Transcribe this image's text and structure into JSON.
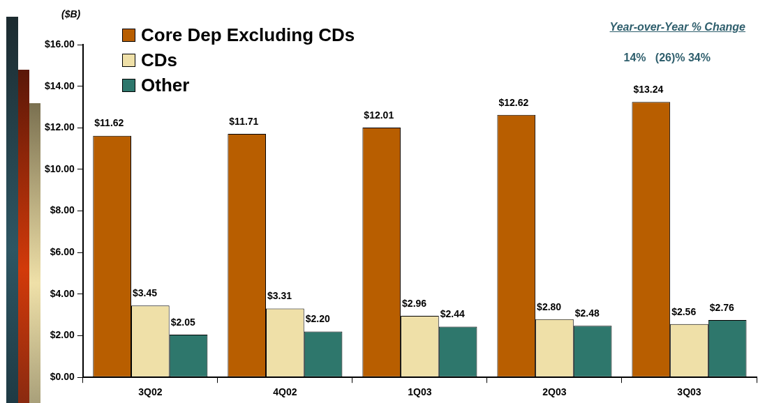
{
  "chart_data": {
    "type": "bar",
    "ylabel": "($B)",
    "categories": [
      "3Q02",
      "4Q02",
      "1Q03",
      "2Q03",
      "3Q03"
    ],
    "series": [
      {
        "name": "Core Dep Excluding CDs",
        "color": "#b85e00",
        "values": [
          11.62,
          11.71,
          12.01,
          12.62,
          13.24
        ]
      },
      {
        "name": "CDs",
        "color": "#efe0a8",
        "values": [
          3.45,
          3.31,
          2.96,
          2.8,
          2.56
        ]
      },
      {
        "name": "Other",
        "color": "#2e776c",
        "values": [
          2.05,
          2.2,
          2.44,
          2.48,
          2.76
        ]
      }
    ],
    "ylim": [
      0,
      16
    ],
    "yticks": [
      {
        "value": 0,
        "label": "$0.00"
      },
      {
        "value": 2,
        "label": "$2.00"
      },
      {
        "value": 4,
        "label": "$4.00"
      },
      {
        "value": 6,
        "label": "$6.00"
      },
      {
        "value": 8,
        "label": "$8.00"
      },
      {
        "value": 10,
        "label": "$10.00"
      },
      {
        "value": 12,
        "label": "$12.00"
      },
      {
        "value": 14,
        "label": "$14.00"
      },
      {
        "value": 16,
        "label": "$16.00"
      }
    ],
    "value_labels": [
      [
        "$11.62",
        "$11.71",
        "$12.01",
        "$12.62",
        "$13.24"
      ],
      [
        "$3.45",
        "$3.31",
        "$2.96",
        "$2.80",
        "$2.56"
      ],
      [
        "$2.05",
        "$2.20",
        "$2.44",
        "$2.48",
        "$2.76"
      ]
    ],
    "annotations": [
      "Year-over-Year % Change",
      "14%   (26)% 34%"
    ],
    "grid": false,
    "legend": "top left"
  }
}
